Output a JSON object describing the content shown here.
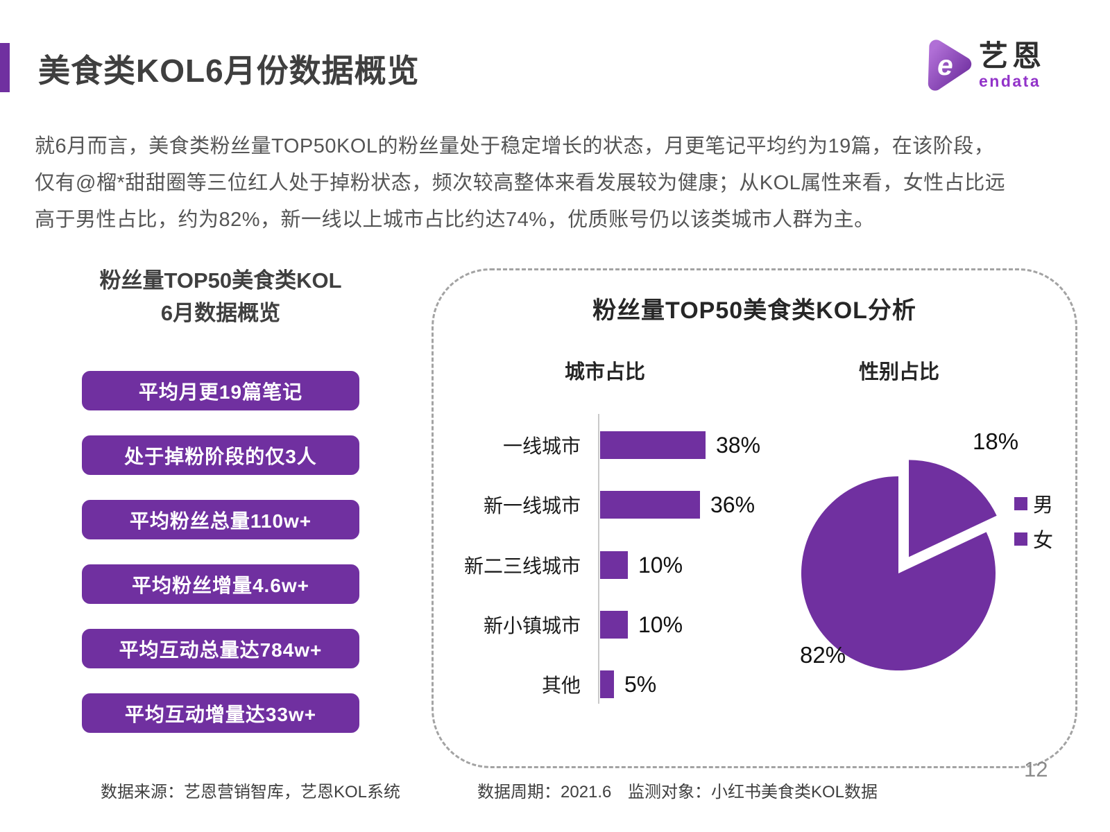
{
  "accent_color": "#7030A0",
  "header": {
    "title": "美食类KOL6月份数据概览",
    "logo": {
      "brand_cn": "艺恩",
      "brand_en": "endata"
    }
  },
  "intro_paragraph": "就6月而言，美食类粉丝量TOP50KOL的粉丝量处于稳定增长的状态，月更笔记平均约为19篇，在该阶段，仅有@榴*甜甜圈等三位红人处于掉粉状态，频次较高整体来看发展较为健康；从KOL属性来看，女性占比远高于男性占比，约为82%，新一线以上城市占比约达74%，优质账号仍以该类城市人群为主。",
  "overview": {
    "heading_line1": "粉丝量TOP50美食类KOL",
    "heading_line2": "6月数据概览",
    "badges": [
      "平均月更19篇笔记",
      "处于掉粉阶段的仅3人",
      "平均粉丝总量110w+",
      "平均粉丝增量4.6w+",
      "平均互动总量达784w+",
      "平均互动增量达33w+"
    ]
  },
  "panel": {
    "title": "粉丝量TOP50美食类KOL分析",
    "left_subtitle": "城市占比",
    "right_subtitle": "性别占比"
  },
  "chart_data": [
    {
      "type": "bar",
      "orientation": "horizontal",
      "title": "城市占比",
      "categories": [
        "一线城市",
        "新一线城市",
        "新二三线城市",
        "新小镇城市",
        "其他"
      ],
      "values": [
        38,
        36,
        10,
        10,
        5
      ],
      "value_labels": [
        "38%",
        "36%",
        "10%",
        "10%",
        "5%"
      ],
      "bar_color": "#7030A0",
      "xlim": [
        0,
        40
      ],
      "grid": false
    },
    {
      "type": "pie",
      "title": "性别占比",
      "labels": [
        "男",
        "女"
      ],
      "values": [
        18,
        82
      ],
      "value_labels": [
        "18%",
        "82%"
      ],
      "colors": [
        "#7030A0",
        "#7030A0"
      ],
      "exploded_index": 0,
      "legend_position": "right"
    }
  ],
  "footer": {
    "source": "数据来源：艺恩营销智库，艺恩KOL系统",
    "period": "数据周期：2021.6",
    "target": "监测对象：小红书美食类KOL数据",
    "page_number": "12"
  }
}
